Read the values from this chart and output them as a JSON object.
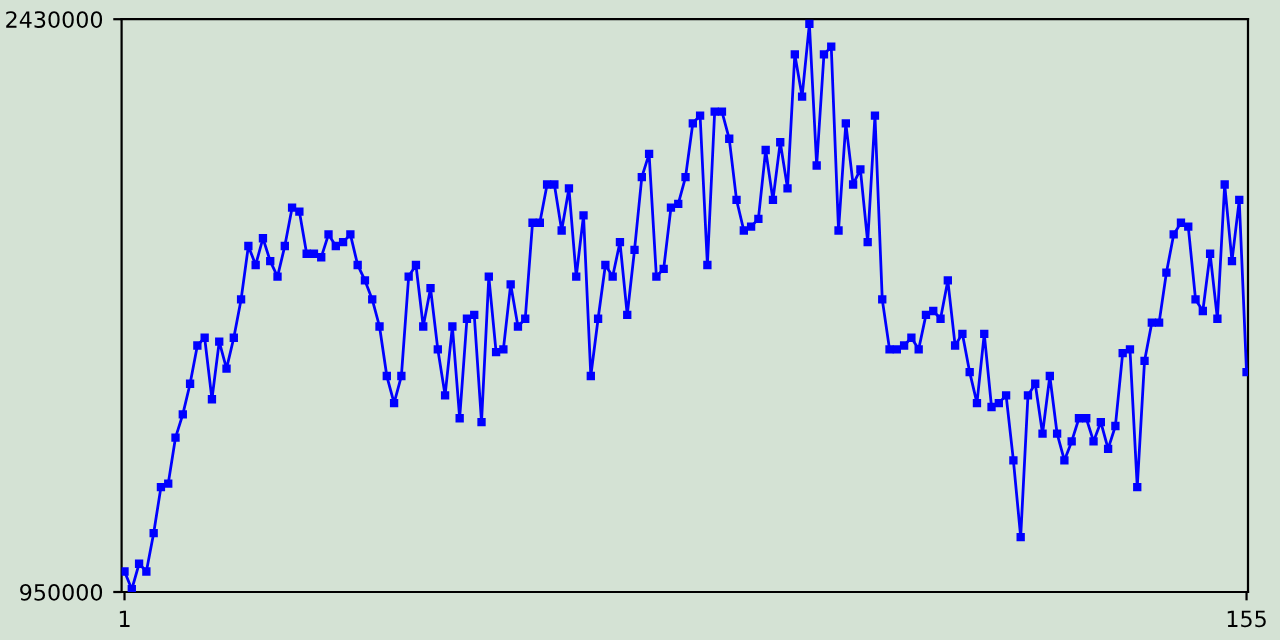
{
  "chart_data": {
    "type": "line",
    "x": [
      1,
      2,
      3,
      4,
      5,
      6,
      7,
      8,
      9,
      10,
      11,
      12,
      13,
      14,
      15,
      16,
      17,
      18,
      19,
      20,
      21,
      22,
      23,
      24,
      25,
      26,
      27,
      28,
      29,
      30,
      31,
      32,
      33,
      34,
      35,
      36,
      37,
      38,
      39,
      40,
      41,
      42,
      43,
      44,
      45,
      46,
      47,
      48,
      49,
      50,
      51,
      52,
      53,
      54,
      55,
      56,
      57,
      58,
      59,
      60,
      61,
      62,
      63,
      64,
      65,
      66,
      67,
      68,
      69,
      70,
      71,
      72,
      73,
      74,
      75,
      76,
      77,
      78,
      79,
      80,
      81,
      82,
      83,
      84,
      85,
      86,
      87,
      88,
      89,
      90,
      91,
      92,
      93,
      94,
      95,
      96,
      97,
      98,
      99,
      100,
      101,
      102,
      103,
      104,
      105,
      106,
      107,
      108,
      109,
      110,
      111,
      112,
      113,
      114,
      115,
      116,
      117,
      118,
      119,
      120,
      121,
      122,
      123,
      124,
      125,
      126,
      127,
      128,
      129,
      130,
      131,
      132,
      133,
      134,
      135,
      136,
      137,
      138,
      139,
      140,
      141,
      142,
      143,
      144,
      145,
      146,
      147,
      148,
      149,
      150,
      151,
      152,
      153,
      154,
      155
    ],
    "series": [
      {
        "color": "#0000ff",
        "values": [
          1003000,
          957000,
          1023000,
          1003000,
          1102000,
          1221000,
          1230000,
          1349000,
          1409000,
          1488000,
          1587000,
          1607000,
          1448000,
          1597000,
          1527000,
          1607000,
          1706000,
          1844000,
          1795000,
          1864000,
          1805000,
          1765000,
          1844000,
          1943000,
          1933000,
          1824000,
          1824000,
          1815000,
          1874000,
          1844000,
          1854000,
          1874000,
          1795000,
          1755000,
          1706000,
          1636000,
          1508000,
          1438000,
          1508000,
          1765000,
          1795000,
          1636000,
          1735000,
          1577000,
          1458000,
          1636000,
          1399000,
          1656000,
          1666000,
          1389000,
          1765000,
          1570000,
          1577000,
          1745000,
          1636000,
          1656000,
          1904000,
          1904000,
          2003000,
          2003000,
          1884000,
          1993000,
          1765000,
          1923000,
          1508000,
          1656000,
          1795000,
          1765000,
          1854000,
          1666000,
          1834000,
          2022000,
          2082000,
          1765000,
          1785000,
          1943000,
          1953000,
          2022000,
          2161000,
          2181000,
          1795000,
          2191000,
          2191000,
          2121000,
          1963000,
          1884000,
          1894000,
          1914000,
          2092000,
          1963000,
          2112000,
          1993000,
          2339000,
          2230000,
          2418000,
          2052000,
          2339000,
          2359000,
          1884000,
          2161000,
          2003000,
          2042000,
          1854000,
          2181000,
          1706000,
          1577000,
          1577000,
          1587000,
          1607000,
          1577000,
          1666000,
          1676000,
          1656000,
          1755000,
          1587000,
          1617000,
          1518000,
          1438000,
          1617000,
          1428000,
          1438000,
          1458000,
          1290000,
          1092000,
          1458000,
          1488000,
          1359000,
          1508000,
          1359000,
          1290000,
          1339000,
          1399000,
          1399000,
          1339000,
          1389000,
          1320000,
          1379000,
          1567000,
          1577000,
          1221000,
          1547000,
          1646000,
          1646000,
          1775000,
          1874000,
          1904000,
          1894000,
          1706000,
          1676000,
          1824000,
          1656000,
          2003000,
          1805000,
          1963000,
          1518000
        ]
      }
    ],
    "xlim": [
      0.6,
      155.2
    ],
    "ylim": [
      950000,
      2430000
    ],
    "xticks": [
      1,
      155
    ],
    "yticks": [
      950000,
      2430000
    ],
    "marker": "square",
    "line_style": "solid",
    "grid": false,
    "legend": false
  }
}
